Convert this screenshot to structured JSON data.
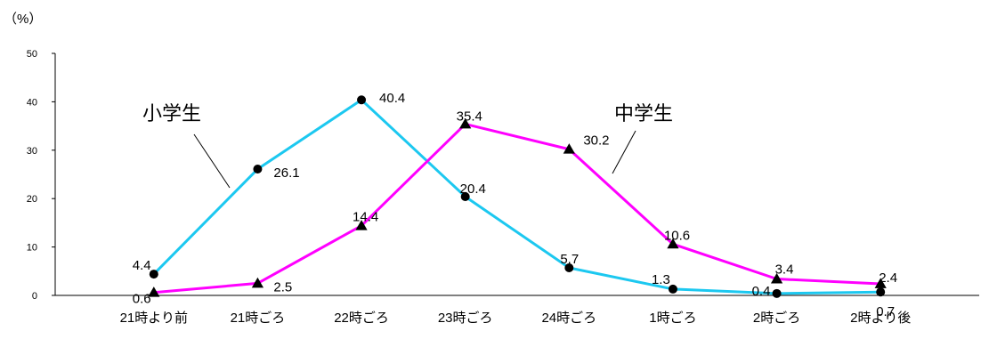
{
  "chart_data": {
    "type": "line",
    "unit_label": "（%）",
    "categories": [
      "21時より前",
      "21時ごろ",
      "22時ごろ",
      "23時ごろ",
      "24時ごろ",
      "1時ごろ",
      "2時ごろ",
      "2時より後"
    ],
    "ylim": [
      0,
      50
    ],
    "yticks": [
      0,
      10,
      20,
      30,
      40,
      50
    ],
    "grid": false,
    "series": [
      {
        "name": "小学生",
        "color": "#1CC8F0",
        "marker": "circle",
        "values": [
          4.4,
          26.1,
          40.4,
          20.4,
          5.7,
          1.3,
          0.4,
          0.7
        ]
      },
      {
        "name": "中学生",
        "color": "#FF00FF",
        "marker": "triangle",
        "values": [
          0.6,
          2.5,
          14.4,
          35.4,
          30.2,
          10.6,
          3.4,
          2.4
        ]
      }
    ]
  }
}
